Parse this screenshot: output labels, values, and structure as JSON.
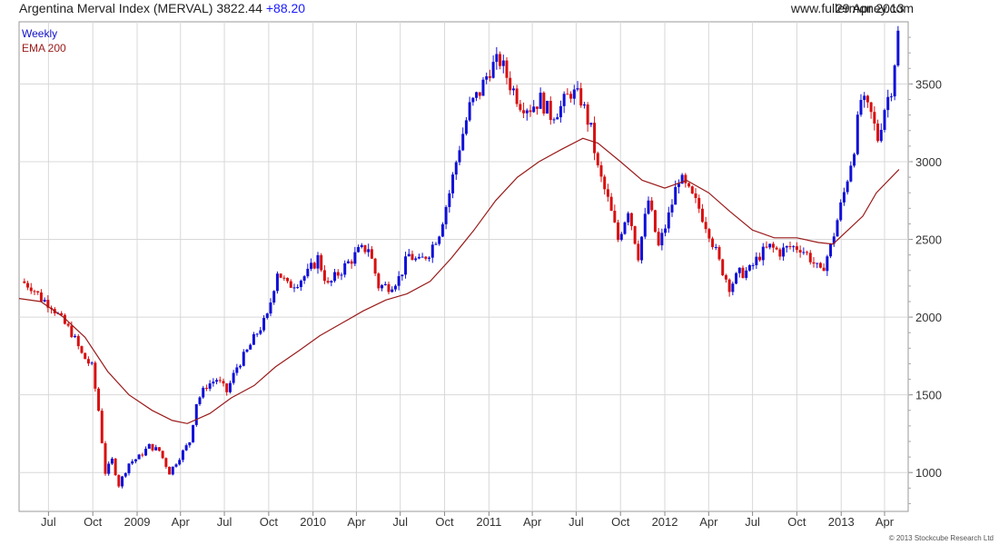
{
  "header": {
    "title": "Argentina Merval Index (MERVAL)",
    "last": "3822.44",
    "change": "+88.20",
    "site": "www.fullermoney.com",
    "date": "29 Apr 2013"
  },
  "legend": {
    "weekly": "Weekly",
    "ema": "EMA 200"
  },
  "copyright": "© 2013 Stockcube Research Ltd",
  "colors": {
    "up": "#1010d8",
    "down": "#d81010",
    "ema": "#9a1a1a",
    "grid": "#d8d8d8",
    "change": "#1a1aff"
  },
  "chart_data": {
    "type": "candlestick",
    "title": "Argentina Merval Index (MERVAL)",
    "frequency": "Weekly",
    "ylim": [
      750,
      3900
    ],
    "y_ticks": [
      1000,
      1500,
      2000,
      2500,
      3000,
      3500
    ],
    "x_ticks": [
      {
        "label": "Jul",
        "date": "2008-07-01"
      },
      {
        "label": "Oct",
        "date": "2008-10-01"
      },
      {
        "label": "2009",
        "date": "2009-01-01"
      },
      {
        "label": "Apr",
        "date": "2009-04-01"
      },
      {
        "label": "Jul",
        "date": "2009-07-01"
      },
      {
        "label": "Oct",
        "date": "2009-10-01"
      },
      {
        "label": "2010",
        "date": "2010-01-01"
      },
      {
        "label": "Apr",
        "date": "2010-04-01"
      },
      {
        "label": "Jul",
        "date": "2010-07-01"
      },
      {
        "label": "Oct",
        "date": "2010-10-01"
      },
      {
        "label": "2011",
        "date": "2011-01-01"
      },
      {
        "label": "Apr",
        "date": "2011-04-01"
      },
      {
        "label": "Jul",
        "date": "2011-07-01"
      },
      {
        "label": "Oct",
        "date": "2011-10-01"
      },
      {
        "label": "2012",
        "date": "2012-01-01"
      },
      {
        "label": "Apr",
        "date": "2012-04-01"
      },
      {
        "label": "Jul",
        "date": "2012-07-01"
      },
      {
        "label": "Oct",
        "date": "2012-10-01"
      },
      {
        "label": "2013",
        "date": "2013-01-01"
      },
      {
        "label": "Apr",
        "date": "2013-04-01"
      }
    ],
    "x_range": [
      "2008-05-01",
      "2013-05-20"
    ],
    "close_series": [
      [
        "2008-05-05",
        2230
      ],
      [
        "2008-05-26",
        2200
      ],
      [
        "2008-06-16",
        2120
      ],
      [
        "2008-07-07",
        2080
      ],
      [
        "2008-07-28",
        1980
      ],
      [
        "2008-08-18",
        1900
      ],
      [
        "2008-09-08",
        1760
      ],
      [
        "2008-09-29",
        1680
      ],
      [
        "2008-10-13",
        1400
      ],
      [
        "2008-10-27",
        1000
      ],
      [
        "2008-11-10",
        1080
      ],
      [
        "2008-11-24",
        920
      ],
      [
        "2008-12-15",
        1060
      ],
      [
        "2009-01-05",
        1100
      ],
      [
        "2009-01-26",
        1170
      ],
      [
        "2009-02-16",
        1140
      ],
      [
        "2009-03-09",
        1000
      ],
      [
        "2009-03-30",
        1100
      ],
      [
        "2009-04-20",
        1200
      ],
      [
        "2009-05-04",
        1450
      ],
      [
        "2009-05-25",
        1560
      ],
      [
        "2009-06-15",
        1600
      ],
      [
        "2009-07-06",
        1520
      ],
      [
        "2009-07-27",
        1680
      ],
      [
        "2009-08-17",
        1780
      ],
      [
        "2009-09-07",
        1900
      ],
      [
        "2009-09-28",
        2000
      ],
      [
        "2009-10-19",
        2300
      ],
      [
        "2009-11-09",
        2200
      ],
      [
        "2009-11-30",
        2230
      ],
      [
        "2009-12-21",
        2280
      ],
      [
        "2010-01-11",
        2380
      ],
      [
        "2010-02-01",
        2200
      ],
      [
        "2010-02-22",
        2280
      ],
      [
        "2010-03-15",
        2350
      ],
      [
        "2010-04-05",
        2420
      ],
      [
        "2010-04-26",
        2450
      ],
      [
        "2010-05-17",
        2200
      ],
      [
        "2010-06-07",
        2200
      ],
      [
        "2010-06-28",
        2250
      ],
      [
        "2010-07-19",
        2400
      ],
      [
        "2010-08-09",
        2350
      ],
      [
        "2010-08-30",
        2420
      ],
      [
        "2010-09-20",
        2550
      ],
      [
        "2010-10-11",
        2800
      ],
      [
        "2010-11-01",
        3100
      ],
      [
        "2010-11-22",
        3350
      ],
      [
        "2010-12-13",
        3450
      ],
      [
        "2011-01-03",
        3600
      ],
      [
        "2011-01-24",
        3650
      ],
      [
        "2011-02-14",
        3500
      ],
      [
        "2011-03-07",
        3380
      ],
      [
        "2011-03-28",
        3350
      ],
      [
        "2011-04-18",
        3400
      ],
      [
        "2011-05-09",
        3300
      ],
      [
        "2011-05-30",
        3350
      ],
      [
        "2011-06-20",
        3450
      ],
      [
        "2011-07-11",
        3400
      ],
      [
        "2011-08-01",
        3200
      ],
      [
        "2011-08-15",
        2950
      ],
      [
        "2011-09-05",
        2750
      ],
      [
        "2011-09-26",
        2500
      ],
      [
        "2011-10-17",
        2700
      ],
      [
        "2011-11-07",
        2400
      ],
      [
        "2011-11-28",
        2750
      ],
      [
        "2011-12-19",
        2450
      ],
      [
        "2012-01-09",
        2650
      ],
      [
        "2012-01-30",
        2900
      ],
      [
        "2012-02-20",
        2800
      ],
      [
        "2012-03-12",
        2700
      ],
      [
        "2012-04-02",
        2550
      ],
      [
        "2012-04-23",
        2350
      ],
      [
        "2012-05-14",
        2200
      ],
      [
        "2012-06-04",
        2280
      ],
      [
        "2012-06-25",
        2300
      ],
      [
        "2012-07-16",
        2400
      ],
      [
        "2012-08-06",
        2450
      ],
      [
        "2012-08-27",
        2420
      ],
      [
        "2012-09-17",
        2450
      ],
      [
        "2012-10-08",
        2450
      ],
      [
        "2012-10-29",
        2380
      ],
      [
        "2012-11-19",
        2280
      ],
      [
        "2012-12-10",
        2450
      ],
      [
        "2013-01-07",
        2800
      ],
      [
        "2013-01-28",
        3100
      ],
      [
        "2013-02-11",
        3400
      ],
      [
        "2013-03-04",
        3300
      ],
      [
        "2013-03-18",
        3150
      ],
      [
        "2013-04-01",
        3350
      ],
      [
        "2013-04-15",
        3480
      ],
      [
        "2013-04-29",
        3822
      ]
    ],
    "ema200": [
      [
        "2008-05-01",
        2120
      ],
      [
        "2008-06-15",
        2100
      ],
      [
        "2008-08-01",
        2000
      ],
      [
        "2008-09-15",
        1870
      ],
      [
        "2008-11-01",
        1650
      ],
      [
        "2008-12-15",
        1500
      ],
      [
        "2009-02-01",
        1400
      ],
      [
        "2009-03-15",
        1335
      ],
      [
        "2009-04-15",
        1315
      ],
      [
        "2009-06-01",
        1380
      ],
      [
        "2009-07-15",
        1480
      ],
      [
        "2009-09-01",
        1560
      ],
      [
        "2009-10-15",
        1680
      ],
      [
        "2009-12-01",
        1780
      ],
      [
        "2010-01-15",
        1880
      ],
      [
        "2010-03-01",
        1960
      ],
      [
        "2010-04-15",
        2040
      ],
      [
        "2010-06-01",
        2110
      ],
      [
        "2010-07-15",
        2150
      ],
      [
        "2010-09-01",
        2230
      ],
      [
        "2010-10-15",
        2380
      ],
      [
        "2010-12-01",
        2560
      ],
      [
        "2011-01-15",
        2750
      ],
      [
        "2011-03-01",
        2900
      ],
      [
        "2011-04-15",
        3000
      ],
      [
        "2011-06-01",
        3080
      ],
      [
        "2011-07-15",
        3150
      ],
      [
        "2011-08-15",
        3120
      ],
      [
        "2011-10-01",
        3000
      ],
      [
        "2011-11-15",
        2880
      ],
      [
        "2012-01-01",
        2830
      ],
      [
        "2012-02-15",
        2880
      ],
      [
        "2012-04-01",
        2800
      ],
      [
        "2012-05-15",
        2680
      ],
      [
        "2012-07-01",
        2560
      ],
      [
        "2012-08-15",
        2510
      ],
      [
        "2012-10-01",
        2510
      ],
      [
        "2012-11-15",
        2480
      ],
      [
        "2012-12-15",
        2470
      ],
      [
        "2013-01-15",
        2560
      ],
      [
        "2013-02-15",
        2650
      ],
      [
        "2013-03-15",
        2800
      ],
      [
        "2013-05-01",
        2950
      ]
    ]
  }
}
